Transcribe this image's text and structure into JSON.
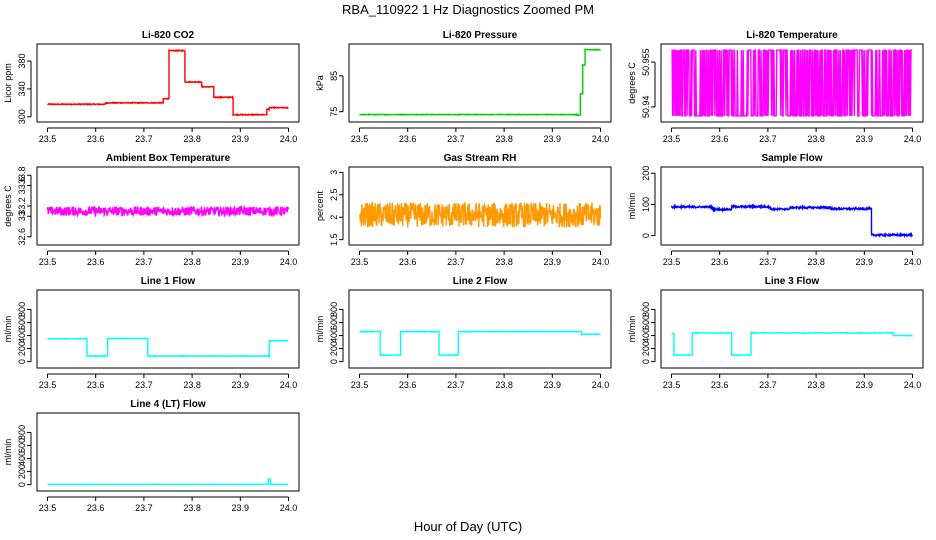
{
  "figure": {
    "title": "RBA_110922 1 Hz Diagnostics Zoomed PM",
    "xlabel": "Hour of Day (UTC)"
  },
  "chart_data": [
    {
      "id": "co2",
      "type": "line",
      "title": "Li-820 CO2",
      "ylabel": "Licor ppm",
      "color": "#ff0000",
      "noise": 0.6,
      "xlim": [
        23.5,
        24.0
      ],
      "xticks": [
        23.5,
        23.6,
        23.7,
        23.8,
        23.9,
        24.0
      ],
      "ylim": [
        297,
        400
      ],
      "yticks": [
        300,
        340,
        380
      ],
      "segments": [
        {
          "x0": 23.5,
          "x1": 23.62,
          "y": 318
        },
        {
          "x0": 23.62,
          "x1": 23.74,
          "y": 320
        },
        {
          "x0": 23.74,
          "x1": 23.752,
          "y": 326
        },
        {
          "x0": 23.752,
          "x1": 23.785,
          "y": 395
        },
        {
          "x0": 23.785,
          "x1": 23.82,
          "y": 350
        },
        {
          "x0": 23.82,
          "x1": 23.845,
          "y": 343
        },
        {
          "x0": 23.845,
          "x1": 23.885,
          "y": 328
        },
        {
          "x0": 23.885,
          "x1": 23.955,
          "y": 303
        },
        {
          "x0": 23.955,
          "x1": 23.96,
          "y": 311
        },
        {
          "x0": 23.96,
          "x1": 24.0,
          "y": 313
        }
      ]
    },
    {
      "id": "pressure",
      "type": "line",
      "title": "Li-820 Pressure",
      "ylabel": "kPa",
      "color": "#00cc00",
      "noise": 0.08,
      "xlim": [
        23.5,
        24.0
      ],
      "xticks": [
        23.5,
        23.6,
        23.7,
        23.8,
        23.9,
        24.0
      ],
      "ylim": [
        73,
        93
      ],
      "yticks": [
        75,
        85
      ],
      "segments": [
        {
          "x0": 23.5,
          "x1": 23.95,
          "y": 74.2
        },
        {
          "x0": 23.95,
          "x1": 23.958,
          "y": 74.0
        },
        {
          "x0": 23.958,
          "x1": 23.963,
          "y": 80
        },
        {
          "x0": 23.963,
          "x1": 23.968,
          "y": 88
        },
        {
          "x0": 23.968,
          "x1": 24.0,
          "y": 92.3
        }
      ]
    },
    {
      "id": "temp",
      "type": "line",
      "title": "Li-820 Temperature",
      "ylabel": "degrees C",
      "color": "#ff00ff",
      "quantized": [
        50.937,
        50.959
      ],
      "xlim": [
        23.5,
        24.0
      ],
      "xticks": [
        23.5,
        23.6,
        23.7,
        23.8,
        23.9,
        24.0
      ],
      "ylim": [
        50.936,
        50.96
      ],
      "yticks": [
        50.94,
        50.955
      ]
    },
    {
      "id": "ambient",
      "type": "line",
      "title": "Ambient Box Temperature",
      "ylabel": "degrees C",
      "color": "#ff00ff",
      "noise": 0.09,
      "xlim": [
        23.5,
        24.0
      ],
      "xticks": [
        23.5,
        23.6,
        23.7,
        23.8,
        23.9,
        24.0
      ],
      "ylim": [
        32.5,
        33.9
      ],
      "yticks": [
        32.6,
        33.0,
        33.2,
        33.6,
        33.8
      ],
      "segments": [
        {
          "x0": 23.5,
          "x1": 24.0,
          "y": 33.1
        }
      ]
    },
    {
      "id": "rh",
      "type": "line",
      "title": "Gas Stream RH",
      "ylabel": "percent",
      "color": "#ff9900",
      "noise": 0.28,
      "xlim": [
        23.5,
        24.0
      ],
      "xticks": [
        23.5,
        23.6,
        23.7,
        23.8,
        23.9,
        24.0
      ],
      "ylim": [
        1.45,
        3.05
      ],
      "yticks": [
        1.5,
        2.0,
        2.5,
        3.0
      ],
      "segments": [
        {
          "x0": 23.5,
          "x1": 24.0,
          "y": 2.05
        }
      ]
    },
    {
      "id": "sample",
      "type": "line",
      "title": "Sample Flow",
      "ylabel": "ml/min",
      "color": "#0000ff",
      "noise": 3,
      "xlim": [
        23.5,
        24.0
      ],
      "xticks": [
        23.5,
        23.6,
        23.7,
        23.8,
        23.9,
        24.0
      ],
      "ylim": [
        -20,
        210
      ],
      "yticks": [
        0,
        100,
        200
      ],
      "segments": [
        {
          "x0": 23.5,
          "x1": 23.585,
          "y": 92
        },
        {
          "x0": 23.585,
          "x1": 23.625,
          "y": 84
        },
        {
          "x0": 23.625,
          "x1": 23.705,
          "y": 93
        },
        {
          "x0": 23.705,
          "x1": 23.745,
          "y": 85
        },
        {
          "x0": 23.745,
          "x1": 23.83,
          "y": 90
        },
        {
          "x0": 23.83,
          "x1": 23.915,
          "y": 86
        },
        {
          "x0": 23.915,
          "x1": 24.0,
          "y": 2
        }
      ]
    },
    {
      "id": "line1",
      "type": "line",
      "title": "Line 1 Flow",
      "ylabel": "ml/min",
      "color": "#00ffff",
      "noise": 4,
      "xlim": [
        23.5,
        24.0
      ],
      "xticks": [
        23.5,
        23.6,
        23.7,
        23.8,
        23.9,
        24.0
      ],
      "ylim": [
        -50,
        1050
      ],
      "yticks": [
        0,
        200,
        400,
        600,
        800
      ],
      "segments": [
        {
          "x0": 23.5,
          "x1": 23.582,
          "y": 350
        },
        {
          "x0": 23.582,
          "x1": 23.625,
          "y": 85
        },
        {
          "x0": 23.625,
          "x1": 23.708,
          "y": 355
        },
        {
          "x0": 23.708,
          "x1": 23.96,
          "y": 85
        },
        {
          "x0": 23.96,
          "x1": 24.0,
          "y": 320
        }
      ]
    },
    {
      "id": "line2",
      "type": "line",
      "title": "Line 2 Flow",
      "ylabel": "ml/min",
      "color": "#00ffff",
      "noise": 4,
      "xlim": [
        23.5,
        24.0
      ],
      "xticks": [
        23.5,
        23.6,
        23.7,
        23.8,
        23.9,
        24.0
      ],
      "ylim": [
        -50,
        1050
      ],
      "yticks": [
        0,
        200,
        400,
        600,
        800
      ],
      "segments": [
        {
          "x0": 23.5,
          "x1": 23.543,
          "y": 460
        },
        {
          "x0": 23.543,
          "x1": 23.585,
          "y": 100
        },
        {
          "x0": 23.585,
          "x1": 23.665,
          "y": 460
        },
        {
          "x0": 23.665,
          "x1": 23.705,
          "y": 100
        },
        {
          "x0": 23.705,
          "x1": 23.96,
          "y": 460
        },
        {
          "x0": 23.96,
          "x1": 24.0,
          "y": 420
        }
      ]
    },
    {
      "id": "line3",
      "type": "line",
      "title": "Line 3 Flow",
      "ylabel": "ml/min",
      "color": "#00ffff",
      "noise": 4,
      "xlim": [
        23.5,
        24.0
      ],
      "xticks": [
        23.5,
        23.6,
        23.7,
        23.8,
        23.9,
        24.0
      ],
      "ylim": [
        -50,
        1050
      ],
      "yticks": [
        0,
        200,
        400,
        600,
        800
      ],
      "segments": [
        {
          "x0": 23.5,
          "x1": 23.505,
          "y": 430
        },
        {
          "x0": 23.505,
          "x1": 23.543,
          "y": 100
        },
        {
          "x0": 23.543,
          "x1": 23.625,
          "y": 440
        },
        {
          "x0": 23.625,
          "x1": 23.665,
          "y": 100
        },
        {
          "x0": 23.665,
          "x1": 23.96,
          "y": 440
        },
        {
          "x0": 23.96,
          "x1": 24.0,
          "y": 400
        }
      ]
    },
    {
      "id": "line4",
      "type": "line",
      "title": "Line 4 (LT) Flow",
      "ylabel": "ml/min",
      "color": "#00ffff",
      "noise": 1.5,
      "xlim": [
        23.5,
        24.0
      ],
      "xticks": [
        23.5,
        23.6,
        23.7,
        23.8,
        23.9,
        24.0
      ],
      "ylim": [
        -50,
        1050
      ],
      "yticks": [
        0,
        200,
        400,
        600,
        800
      ],
      "segments": [
        {
          "x0": 23.5,
          "x1": 23.958,
          "y": 5
        },
        {
          "x0": 23.958,
          "x1": 23.962,
          "y": 85
        },
        {
          "x0": 23.962,
          "x1": 24.0,
          "y": 5
        }
      ]
    }
  ]
}
